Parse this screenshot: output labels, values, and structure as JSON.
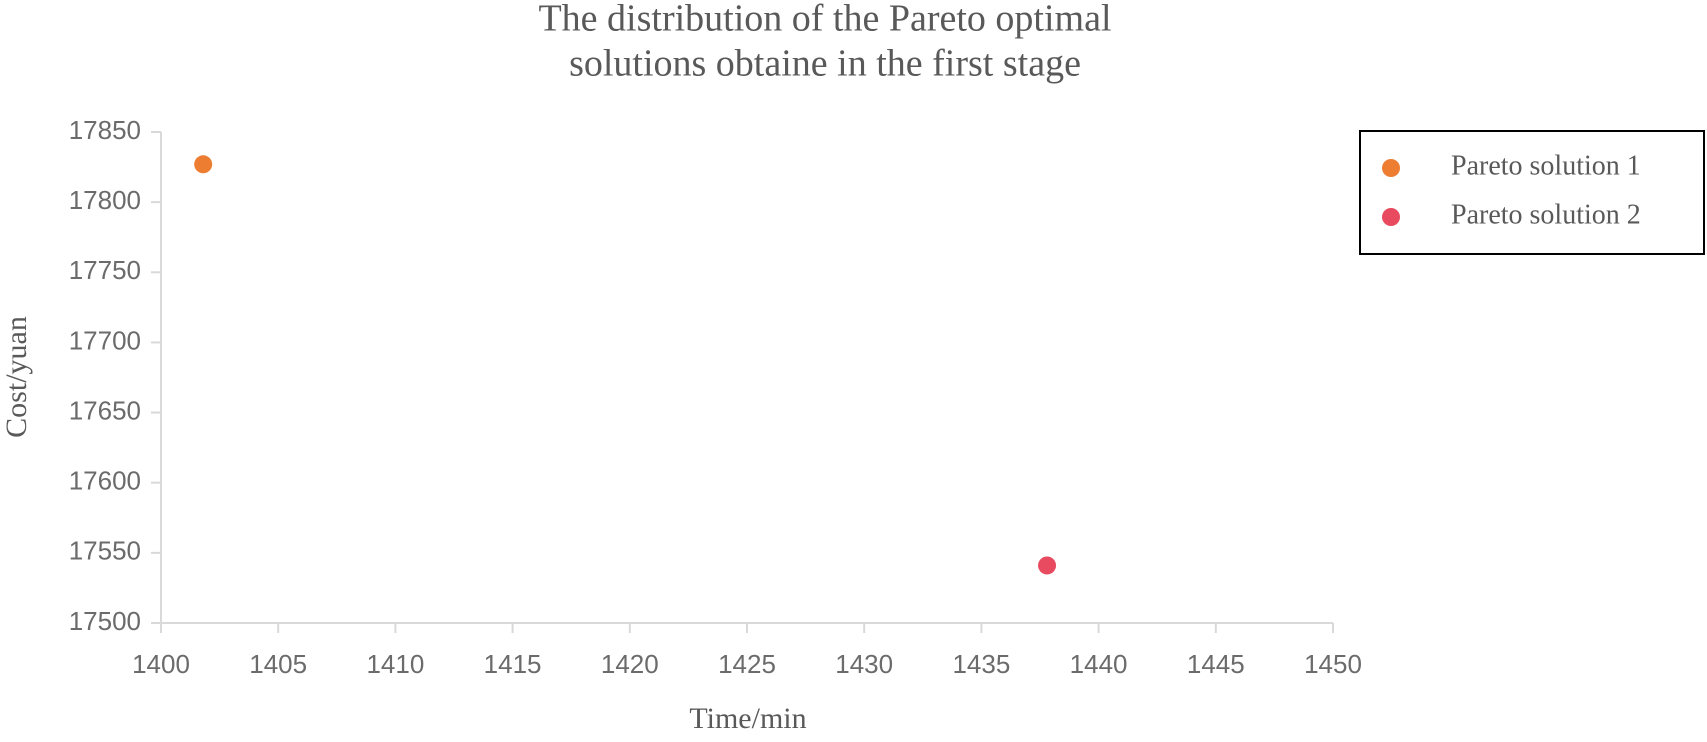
{
  "chart_data": {
    "type": "scatter",
    "title": [
      "The distribution of the Pareto optimal",
      "solutions obtaine in the first stage"
    ],
    "x_label": "Time/min",
    "y_label": "Cost/yuan",
    "series": [
      {
        "name": "Pareto solution 1",
        "color": "#ed7d31",
        "x": [
          1401.8
        ],
        "values": [
          17827
        ]
      },
      {
        "name": "Pareto solution 2",
        "color": "#e84a5f",
        "x": [
          1437.8
        ],
        "values": [
          17541
        ]
      }
    ],
    "xlim": [
      1400,
      1450
    ],
    "xticks": [
      1400,
      1405,
      1410,
      1415,
      1420,
      1425,
      1430,
      1435,
      1440,
      1445,
      1450
    ],
    "ylim": [
      17500,
      17850
    ],
    "yticks": [
      17500,
      17550,
      17600,
      17650,
      17700,
      17750,
      17800,
      17850
    ],
    "legend": "right"
  }
}
